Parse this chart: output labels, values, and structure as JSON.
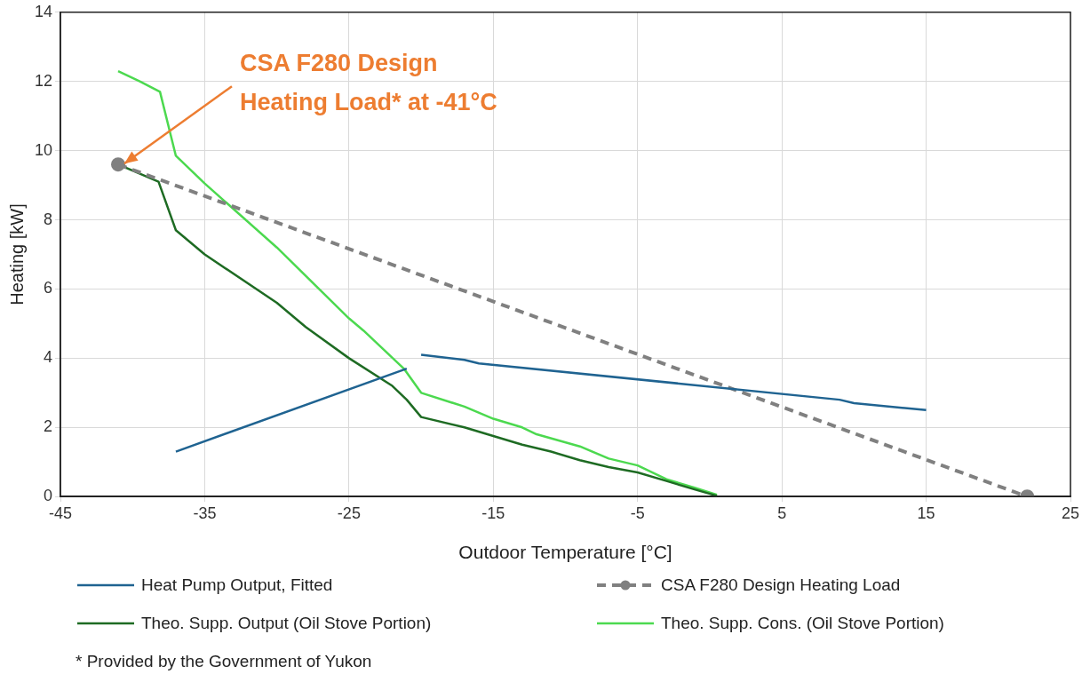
{
  "chart_data": {
    "type": "line",
    "xlabel": "Outdoor Temperature [°C]",
    "ylabel": "Heating [kW]",
    "xlim": [
      -45,
      25
    ],
    "xticks": [
      -45,
      -35,
      -25,
      -15,
      -5,
      5,
      15,
      25
    ],
    "ylim": [
      0,
      14
    ],
    "yticks": [
      0,
      2,
      4,
      6,
      8,
      10,
      12,
      14
    ],
    "grid": true,
    "legend": "bottom",
    "marker": "none",
    "line_style": "solid",
    "series": [
      {
        "name": "Heat Pump Output, Fitted",
        "color": "#1f6391",
        "x": [
          -37,
          -21,
          -20.5,
          -20,
          -17,
          -16,
          9,
          10,
          15
        ],
        "values": [
          1.3,
          3.7,
          null,
          4.1,
          3.95,
          3.85,
          2.8,
          2.7,
          2.5
        ]
      },
      {
        "name": "CSA F280 Design Heating Load",
        "color": "#808080",
        "line_style": "dashed",
        "marker": "circle",
        "x": [
          -41,
          22
        ],
        "values": [
          9.6,
          0
        ]
      },
      {
        "name": "Theo. Supp. Output (Oil Stove Portion)",
        "color": "#1e6b23",
        "x": [
          -41,
          -38.2,
          -37,
          -35,
          -30,
          -28,
          -25,
          -22,
          -21,
          -20,
          -17,
          -15,
          -13,
          -11,
          -9,
          -7,
          -5,
          -3,
          -1,
          0.5
        ],
        "values": [
          9.6,
          9.1,
          7.7,
          7.0,
          5.6,
          4.9,
          4.0,
          3.2,
          2.8,
          2.3,
          2.0,
          1.75,
          1.5,
          1.3,
          1.05,
          0.85,
          0.7,
          0.45,
          0.2,
          0.02
        ]
      },
      {
        "name": "Theo. Supp. Cons. (Oil Stove Portion)",
        "color": "#4cd94f",
        "x": [
          -41,
          -39.5,
          -38.1,
          -37,
          -35,
          -30,
          -25,
          -24,
          -21.2,
          -20,
          -17,
          -15,
          -13,
          -12,
          -9,
          -7,
          -5,
          -3,
          -1,
          0.5
        ],
        "values": [
          12.3,
          12.0,
          11.7,
          9.85,
          9.05,
          7.2,
          5.15,
          4.8,
          3.7,
          3.0,
          2.6,
          2.25,
          2.0,
          1.8,
          1.45,
          1.1,
          0.9,
          0.5,
          0.25,
          0.05
        ]
      }
    ],
    "annotations": [
      {
        "text": "CSA F280 Design Heating Load* at -41°C",
        "x": -41,
        "y": 9.6
      },
      "* Provided by the Government of Yukon"
    ]
  }
}
